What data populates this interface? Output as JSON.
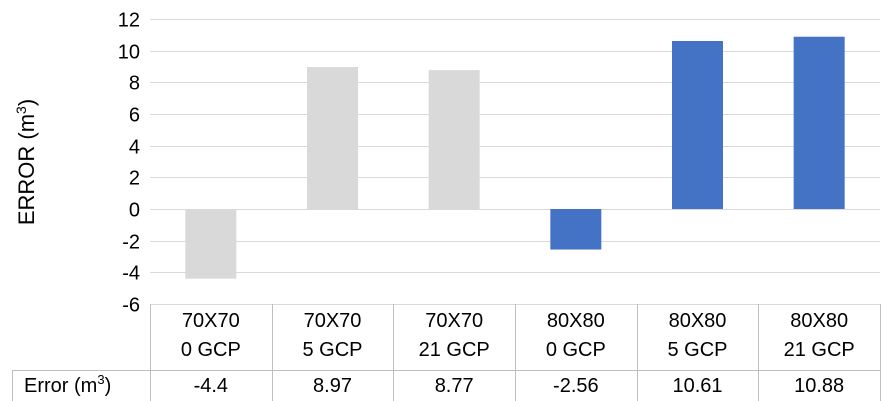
{
  "chart_data": {
    "type": "bar",
    "title": "",
    "xlabel": "",
    "ylabel": "ERROR (m",
    "ylabel_sup": "3",
    "ylabel_close": ")",
    "ylim": [
      -6,
      12
    ],
    "yticks": [
      -6,
      -4,
      -2,
      0,
      2,
      4,
      6,
      8,
      10,
      12
    ],
    "grid": true,
    "categories": [
      [
        "70X70",
        "0 GCP"
      ],
      [
        "70X70",
        "5 GCP"
      ],
      [
        "70X70",
        "21 GCP"
      ],
      [
        "80X80",
        "0 GCP"
      ],
      [
        "80X80",
        "5 GCP"
      ],
      [
        "80X80",
        "21 GCP"
      ]
    ],
    "values": [
      -4.4,
      8.97,
      8.77,
      -2.56,
      10.61,
      10.88
    ],
    "value_labels": [
      "-4.4",
      "8.97",
      "8.77",
      "-2.56",
      "10.61",
      "10.88"
    ],
    "bar_colors": [
      "#d9d9d9",
      "#d9d9d9",
      "#d9d9d9",
      "#4472c4",
      "#4472c4",
      "#4472c4"
    ],
    "colors": {
      "grid": "#d9d9d9",
      "table_border": "#bfbfbf"
    },
    "table": {
      "row_label": "Error (m",
      "row_label_sup": "3",
      "row_label_close": ")"
    }
  }
}
